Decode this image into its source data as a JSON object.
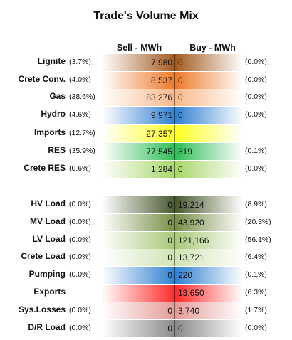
{
  "title": "Trade's Volume Mix",
  "headers": {
    "sell": "Sell - MWh",
    "buy": "Buy - MWh"
  },
  "rows": [
    {
      "label": "Lignite",
      "pct_sell": "(3.7%)",
      "sell": "7,980",
      "buy": "0",
      "pct_buy": "(0.0%)",
      "sell_color": "#a25a1f",
      "buy_color": "#a25a1f"
    },
    {
      "label": "Crete Conv.",
      "pct_sell": "(4.0%)",
      "sell": "8,537",
      "buy": "0",
      "pct_buy": "(0.0%)",
      "sell_color": "#ec7a2a",
      "buy_color": "#ec7a2a"
    },
    {
      "label": "Gas",
      "pct_sell": "(38.6%)",
      "sell": "83,276",
      "buy": "0",
      "pct_buy": "(0.0%)",
      "sell_color": "#f8b98a",
      "buy_color": "#f8b98a"
    },
    {
      "label": "Hydro",
      "pct_sell": "(4.6%)",
      "sell": "9,971",
      "buy": "0",
      "pct_buy": "(0.0%)",
      "sell_color": "#2f7fd0",
      "buy_color": "#2f7fd0"
    },
    {
      "label": "Imports",
      "pct_sell": "(12.7%)",
      "sell": "27,357",
      "buy": "",
      "pct_buy": "",
      "sell_color": "#ffff22",
      "buy_color": "#ffff22"
    },
    {
      "label": "RES",
      "pct_sell": "(35.9%)",
      "sell": "77,545",
      "buy": "319",
      "pct_buy": "(0.1%)",
      "sell_color": "#2fbd57",
      "buy_color": "#2fbd57"
    },
    {
      "label": "Crete RES",
      "pct_sell": "(0.6%)",
      "sell": "1,284",
      "buy": "0",
      "pct_buy": "(0.0%)",
      "sell_color": "#a6d668",
      "buy_color": "#a6d668"
    },
    {
      "label": "HV Load",
      "pct_sell": "(0.0%)",
      "sell": "0",
      "buy": "19,214",
      "pct_buy": "(8.9%)",
      "sell_color": "#48582e",
      "buy_color": "#48582e"
    },
    {
      "label": "MV Load",
      "pct_sell": "(0.0%)",
      "sell": "0",
      "buy": "43,920",
      "pct_buy": "(20.3%)",
      "sell_color": "#778f47",
      "buy_color": "#778f47"
    },
    {
      "label": "LV Load",
      "pct_sell": "(0.0%)",
      "sell": "0",
      "buy": "121,166",
      "pct_buy": "(56.1%)",
      "sell_color": "#a8c878",
      "buy_color": "#a8c878"
    },
    {
      "label": "Crete Load",
      "pct_sell": "(0.0%)",
      "sell": "0",
      "buy": "13,721",
      "pct_buy": "(6.4%)",
      "sell_color": "#cfe4b4",
      "buy_color": "#cfe4b4"
    },
    {
      "label": "Pumping",
      "pct_sell": "(0.0%)",
      "sell": "0",
      "buy": "220",
      "pct_buy": "(0.1%)",
      "sell_color": "#2f7fd0",
      "buy_color": "#2f7fd0"
    },
    {
      "label": "Exports",
      "pct_sell": "",
      "sell": "",
      "buy": "13,650",
      "pct_buy": "(6.3%)",
      "sell_color": "#ff2a2a",
      "buy_color": "#ff2a2a"
    },
    {
      "label": "Sys.Losses",
      "pct_sell": "(0.0%)",
      "sell": "0",
      "buy": "3,740",
      "pct_buy": "(1.7%)",
      "sell_color": "#e49c98",
      "buy_color": "#e49c98"
    },
    {
      "label": "D/R Load",
      "pct_sell": "(0.0%)",
      "sell": "0",
      "buy": "0",
      "pct_buy": "(0.0%)",
      "sell_color": "#8a8a8a",
      "buy_color": "#8a8a8a"
    }
  ]
}
